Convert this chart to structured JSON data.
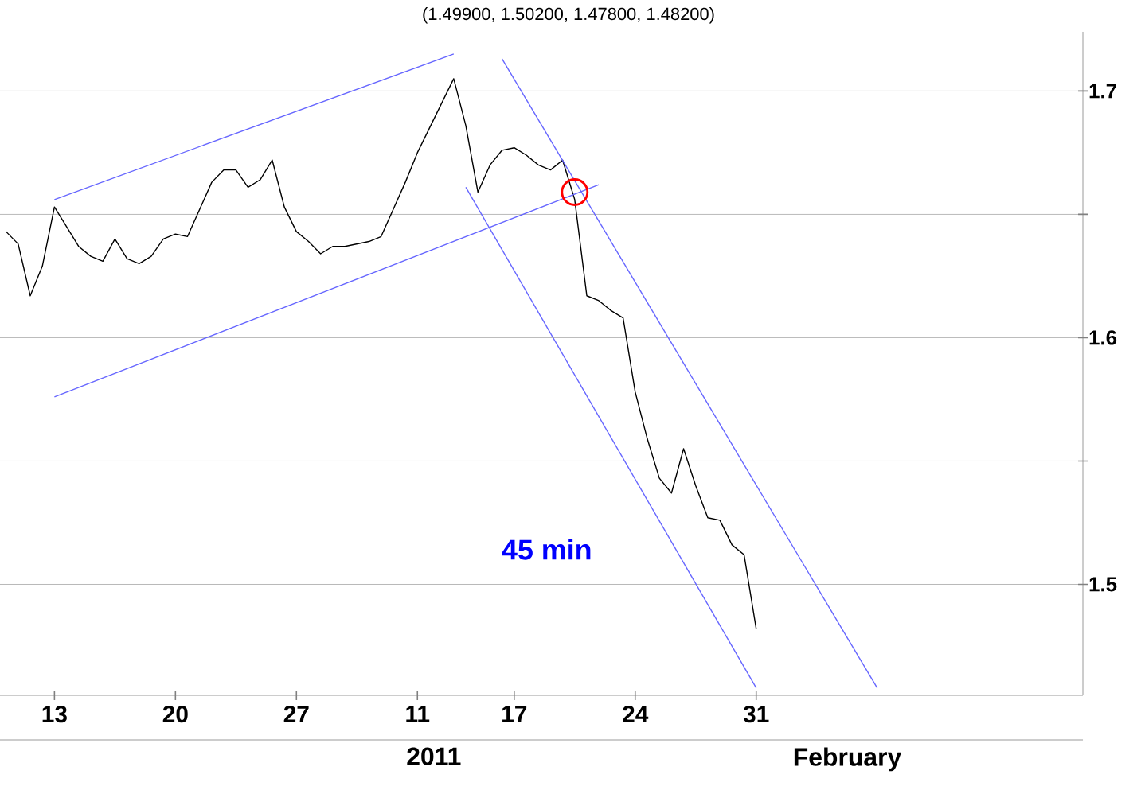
{
  "chart_data": {
    "type": "line",
    "title": "(1.49900, 1.50200, 1.47800, 1.48200)",
    "annotations": [
      "45 min",
      "2011",
      "February"
    ],
    "categories": [
      null,
      null,
      null,
      null,
      "13",
      null,
      null,
      null,
      null,
      null,
      null,
      null,
      null,
      null,
      "20",
      null,
      null,
      null,
      null,
      null,
      null,
      null,
      null,
      null,
      "27",
      null,
      null,
      null,
      null,
      null,
      null,
      null,
      null,
      null,
      "11",
      null,
      null,
      null,
      null,
      null,
      null,
      null,
      "17",
      null,
      null,
      null,
      null,
      null,
      null,
      null,
      null,
      null,
      "24",
      null,
      null,
      null,
      null,
      null,
      null,
      null,
      null,
      null,
      "31",
      null,
      null,
      null,
      null,
      null,
      null,
      null,
      null,
      null,
      null,
      null,
      null,
      null,
      null,
      null,
      null,
      null,
      null,
      null,
      null,
      null,
      null,
      null,
      null,
      null,
      null,
      null
    ],
    "ylim": [
      1.455,
      1.724
    ],
    "yticks": [
      1.5,
      {
        "value": 1.55,
        "label": null
      },
      1.6,
      {
        "value": 1.65,
        "label": null
      },
      1.7
    ],
    "grid": "y",
    "marker": "none",
    "line_style": "solid",
    "series": [
      {
        "color": "#000000",
        "values": [
          1.643,
          1.638,
          1.617,
          1.629,
          1.653,
          1.645,
          1.637,
          1.633,
          1.631,
          1.64,
          1.632,
          1.63,
          1.633,
          1.64,
          1.642,
          1.641,
          1.652,
          1.663,
          1.668,
          1.668,
          1.661,
          1.664,
          1.672,
          1.653,
          1.643,
          1.639,
          1.634,
          1.637,
          1.637,
          1.638,
          1.639,
          1.641,
          1.652,
          1.663,
          1.675,
          1.685,
          1.695,
          1.705,
          1.686,
          1.659,
          1.67,
          1.676,
          1.677,
          1.674,
          1.67,
          1.668,
          1.672,
          1.656,
          1.617,
          1.615,
          1.611,
          1.608,
          1.578,
          1.559,
          1.543,
          1.537,
          1.555,
          1.54,
          1.527,
          1.526,
          1.516,
          1.512,
          1.482,
          null,
          null,
          null,
          null,
          null,
          null,
          null,
          null,
          null,
          null,
          null,
          null,
          null,
          null,
          null,
          null,
          null,
          null,
          null,
          null,
          null,
          null,
          null,
          null,
          null,
          null,
          null
        ]
      },
      {
        "type": "line",
        "color": "#6666ff",
        "values": [
          null,
          null,
          null,
          null,
          1.656,
          null,
          null,
          null,
          null,
          null,
          null,
          null,
          null,
          null,
          null,
          null,
          null,
          null,
          null,
          null,
          null,
          null,
          null,
          null,
          null,
          null,
          null,
          null,
          null,
          null,
          null,
          null,
          null,
          null,
          null,
          null,
          null,
          1.715,
          null,
          null,
          null,
          null,
          null,
          null,
          null,
          null,
          null,
          null,
          null,
          null,
          null,
          null,
          null,
          null,
          null,
          null,
          null,
          null,
          null,
          null,
          null,
          null,
          null,
          null,
          null,
          null,
          null,
          null,
          null,
          null,
          null,
          null,
          null,
          null,
          null,
          null,
          null,
          null,
          null,
          null,
          null,
          null,
          null,
          null,
          null,
          null,
          null,
          null,
          null,
          null
        ]
      },
      {
        "type": "line",
        "color": "#6666ff",
        "values": [
          null,
          null,
          null,
          null,
          1.576,
          null,
          null,
          null,
          null,
          null,
          null,
          null,
          null,
          null,
          null,
          null,
          null,
          null,
          null,
          null,
          null,
          null,
          null,
          null,
          null,
          null,
          null,
          null,
          null,
          null,
          null,
          null,
          null,
          null,
          null,
          null,
          null,
          null,
          null,
          null,
          null,
          null,
          null,
          null,
          null,
          null,
          null,
          null,
          null,
          1.662,
          null,
          null,
          null,
          null,
          null,
          null,
          null,
          null,
          null,
          null,
          null,
          null,
          null,
          null,
          null,
          null,
          null,
          null,
          null,
          null,
          null,
          null,
          null,
          null,
          null,
          null,
          null,
          null,
          null,
          null,
          null,
          null,
          null,
          null,
          null,
          null,
          null,
          null,
          null,
          null
        ]
      },
      {
        "type": "line",
        "color": "#6666ff",
        "values": [
          null,
          null,
          null,
          null,
          null,
          null,
          null,
          null,
          null,
          null,
          null,
          null,
          null,
          null,
          null,
          null,
          null,
          null,
          null,
          null,
          null,
          null,
          null,
          null,
          null,
          null,
          null,
          null,
          null,
          null,
          null,
          null,
          null,
          null,
          null,
          null,
          null,
          null,
          null,
          null,
          null,
          1.713,
          null,
          null,
          null,
          null,
          null,
          null,
          null,
          null,
          null,
          null,
          null,
          null,
          null,
          null,
          null,
          null,
          null,
          null,
          null,
          null,
          null,
          null,
          null,
          null,
          null,
          null,
          null,
          null,
          null,
          null,
          1.458,
          null,
          null,
          null,
          null,
          null,
          null,
          null,
          null,
          null,
          null,
          null,
          null,
          null,
          null,
          null,
          null,
          null
        ]
      },
      {
        "type": "line",
        "color": "#6666ff",
        "values": [
          null,
          null,
          null,
          null,
          null,
          null,
          null,
          null,
          null,
          null,
          null,
          null,
          null,
          null,
          null,
          null,
          null,
          null,
          null,
          null,
          null,
          null,
          null,
          null,
          null,
          null,
          null,
          null,
          null,
          null,
          null,
          null,
          null,
          null,
          null,
          null,
          null,
          null,
          1.661,
          null,
          null,
          null,
          null,
          null,
          null,
          null,
          null,
          null,
          null,
          null,
          null,
          null,
          null,
          null,
          null,
          null,
          null,
          null,
          null,
          null,
          null,
          null,
          1.458,
          null,
          null,
          null,
          null,
          null,
          null,
          null,
          null,
          null,
          null,
          null,
          null,
          null,
          null,
          null,
          null,
          null,
          null,
          null,
          null,
          null,
          null,
          null,
          null,
          null,
          null,
          null
        ]
      },
      {
        "type": "scatter",
        "color": "#ff0000",
        "marker": "circle",
        "values": [
          null,
          null,
          null,
          null,
          null,
          null,
          null,
          null,
          null,
          null,
          null,
          null,
          null,
          null,
          null,
          null,
          null,
          null,
          null,
          null,
          null,
          null,
          null,
          null,
          null,
          null,
          null,
          null,
          null,
          null,
          null,
          null,
          null,
          null,
          null,
          null,
          null,
          null,
          null,
          null,
          null,
          null,
          null,
          null,
          null,
          null,
          null,
          1.659,
          null,
          null,
          null,
          null,
          null,
          null,
          null,
          null,
          null,
          null,
          null,
          null,
          null,
          null,
          null,
          null,
          null,
          null,
          null,
          null,
          null,
          null,
          null,
          null,
          null,
          null,
          null,
          null,
          null,
          null,
          null,
          null,
          null,
          null,
          null,
          null,
          null,
          null,
          null,
          null,
          null,
          null
        ]
      }
    ]
  }
}
